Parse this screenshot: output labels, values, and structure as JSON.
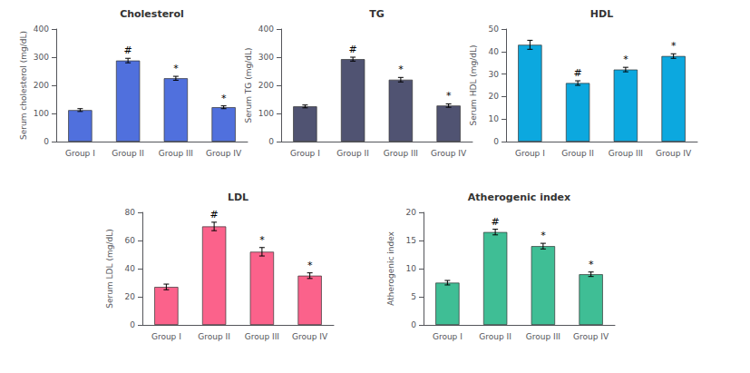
{
  "chart_data": [
    {
      "type": "bar",
      "title": "Cholesterol",
      "ylabel": "Serum cholesterol (mg/dL)",
      "categories": [
        "Group I",
        "Group II",
        "Group III",
        "Group IV"
      ],
      "values": [
        112,
        288,
        225,
        122
      ],
      "errors": [
        5,
        8,
        7,
        5
      ],
      "ylim": [
        0,
        400
      ],
      "yticks": [
        0,
        100,
        200,
        300,
        400
      ],
      "annotations": [
        null,
        "#",
        "*",
        "*"
      ],
      "grid": false
    },
    {
      "type": "bar",
      "title": "TG",
      "ylabel": "Serum TG (mg/dL)",
      "categories": [
        "Group I",
        "Group II",
        "Group III",
        "Group IV"
      ],
      "values": [
        125,
        293,
        220,
        128
      ],
      "errors": [
        5,
        7,
        8,
        6
      ],
      "ylim": [
        0,
        400
      ],
      "yticks": [
        0,
        100,
        200,
        300,
        400
      ],
      "annotations": [
        null,
        "#",
        "*",
        "*"
      ],
      "grid": false
    },
    {
      "type": "bar",
      "title": "HDL",
      "ylabel": "Serum HDL (mg/dL)",
      "categories": [
        "Group I",
        "Group II",
        "Group III",
        "Group IV"
      ],
      "values": [
        43,
        26,
        32,
        38
      ],
      "errors": [
        2,
        1,
        1,
        1
      ],
      "ylim": [
        0,
        50
      ],
      "yticks": [
        0,
        10,
        20,
        30,
        40,
        50
      ],
      "annotations": [
        null,
        "#",
        "*",
        "*"
      ],
      "grid": false
    },
    {
      "type": "bar",
      "title": "LDL",
      "ylabel": "Serum LDL (mg/dL)",
      "categories": [
        "Group I",
        "Group II",
        "Group III",
        "Group IV"
      ],
      "values": [
        27,
        70,
        52,
        35
      ],
      "errors": [
        2,
        3,
        3,
        2
      ],
      "ylim": [
        0,
        80
      ],
      "yticks": [
        0,
        20,
        40,
        60,
        80
      ],
      "annotations": [
        null,
        "#",
        "*",
        "*"
      ],
      "grid": false
    },
    {
      "type": "bar",
      "title": "Atherogenic index",
      "ylabel": "Atherogenic index",
      "categories": [
        "Group I",
        "Group II",
        "Group III",
        "Group IV"
      ],
      "values": [
        7.5,
        16.5,
        14,
        9
      ],
      "errors": [
        0.4,
        0.5,
        0.5,
        0.4
      ],
      "ylim": [
        0,
        20
      ],
      "yticks": [
        0,
        5,
        10,
        15,
        20
      ],
      "annotations": [
        null,
        "#",
        "*",
        "*"
      ],
      "grid": false
    }
  ]
}
